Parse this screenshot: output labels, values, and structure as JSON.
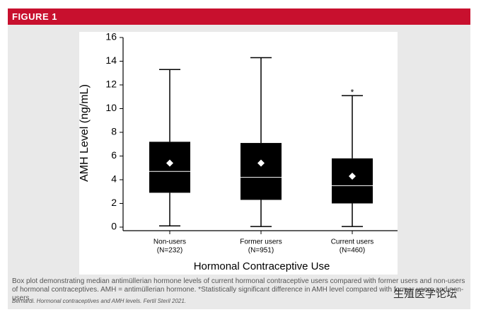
{
  "header": "FIGURE 1",
  "chart_data": {
    "type": "box",
    "ylabel": "AMH Level (ng/mL)",
    "xlabel": "Hormonal Contraceptive Use",
    "categories": [
      "Non-users",
      "Former users",
      "Current users"
    ],
    "category_counts": [
      "(N=232)",
      "(N=951)",
      "(N=460)"
    ],
    "whisker_low": [
      0.1,
      0.05,
      0.05
    ],
    "q1": [
      2.9,
      2.3,
      2.0
    ],
    "median": [
      4.7,
      4.2,
      3.5
    ],
    "q3": [
      7.2,
      7.1,
      5.8
    ],
    "whisker_high": [
      13.3,
      14.3,
      11.1
    ],
    "mean": [
      5.4,
      5.4,
      4.3
    ],
    "annotations": [
      {
        "category": 2,
        "y": 11.5,
        "text": "*"
      }
    ],
    "color": "#000000",
    "ylim": [
      -0.3,
      16
    ],
    "yticks": [
      0,
      2,
      4,
      6,
      8,
      10,
      12,
      14,
      16
    ]
  },
  "caption": "Box plot demonstrating median antimüllerian hormone levels of current hormonal contraceptive users compared with former users and non-users of hormonal contraceptives. AMH = antimüllerian hormone. *Statistically significant difference in AMH level compared with former users and non-users.",
  "citation": "Bernardi. Hormonal contraceptives and AMH levels. Fertil Steril 2021.",
  "watermark": "生殖医学论坛"
}
